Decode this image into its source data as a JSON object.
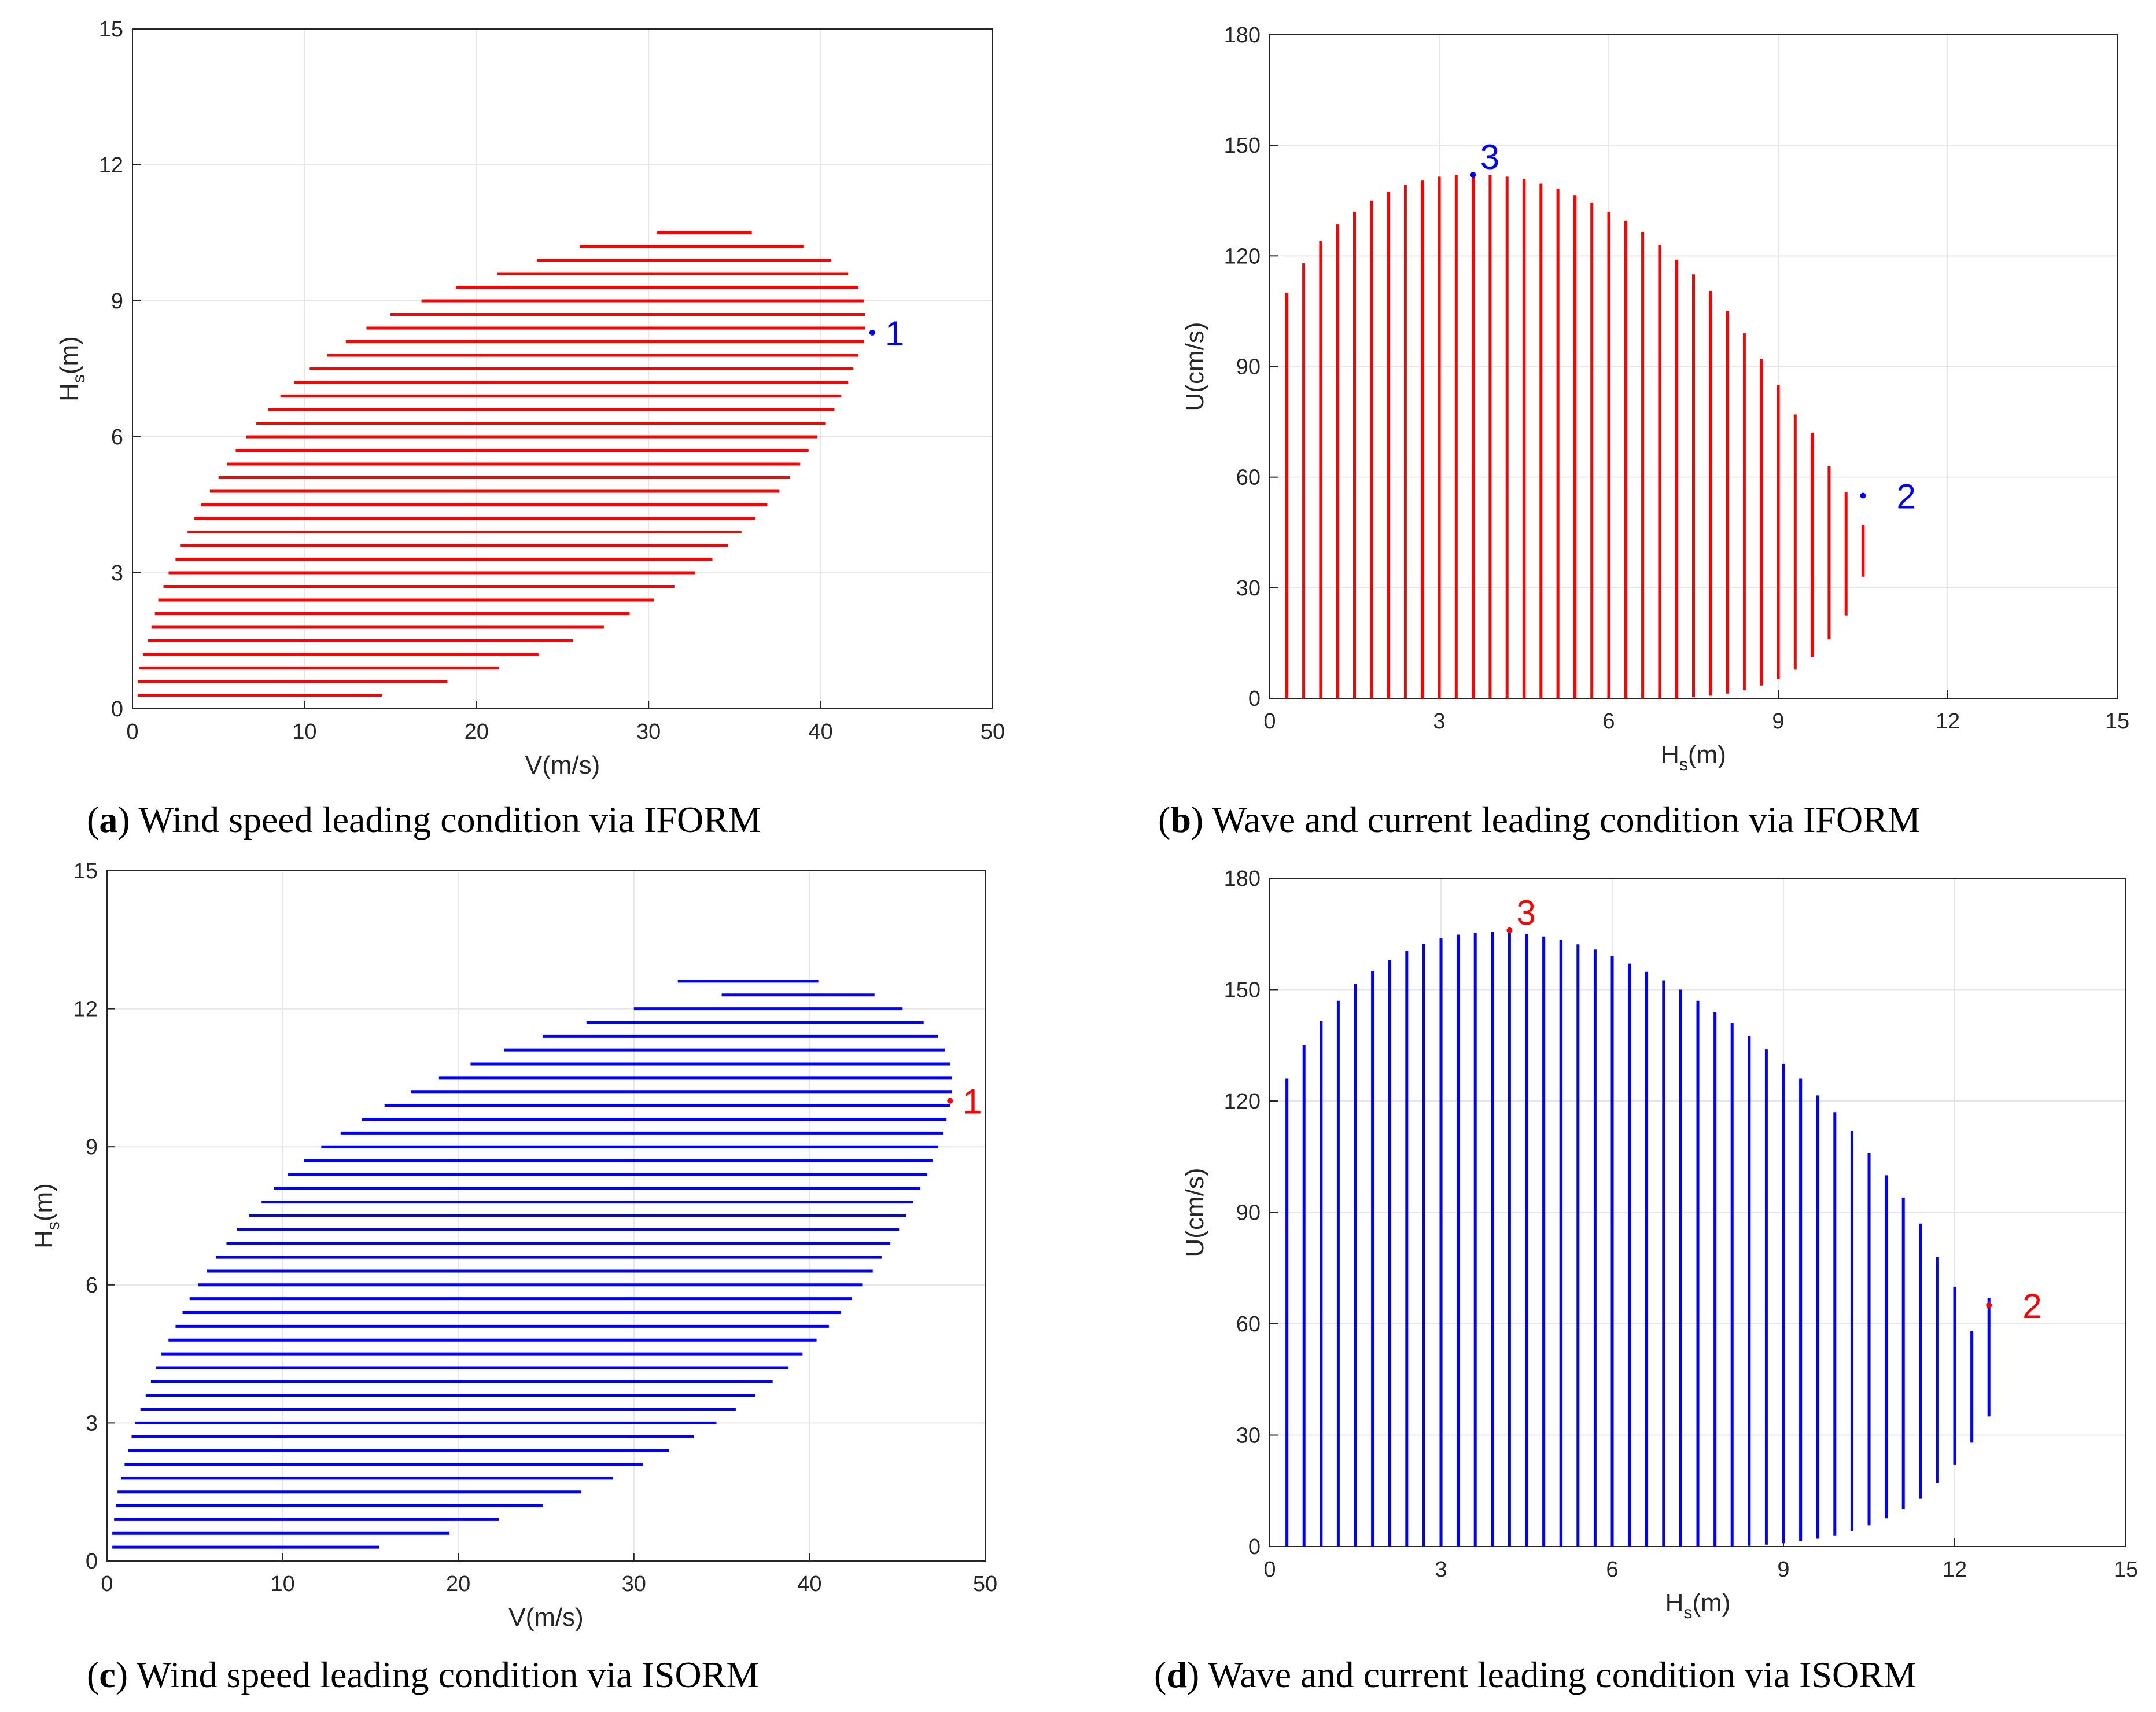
{
  "chart_data": [
    {
      "id": "a",
      "type": "contour-lines",
      "orientation": "horizontal",
      "color": "#ff0000",
      "marker_color": "#0000ff",
      "xlabel": "V(m/s)",
      "ylabel_main": "H",
      "ylabel_sub": "s",
      "ylabel_unit": "(m)",
      "xlim": [
        0,
        50
      ],
      "ylim": [
        0,
        15
      ],
      "xticks": [
        "0",
        "10",
        "20",
        "30",
        "40",
        "50"
      ],
      "yticks": [
        "0",
        "3",
        "6",
        "9",
        "12",
        "15"
      ],
      "lines": {
        "y": [
          0.3,
          0.6,
          0.9,
          1.2,
          1.5,
          1.8,
          2.1,
          2.4,
          2.7,
          3.0,
          3.3,
          3.6,
          3.9,
          4.2,
          4.5,
          4.8,
          5.1,
          5.4,
          5.7,
          6.0,
          6.3,
          6.6,
          6.9,
          7.2,
          7.5,
          7.8,
          8.1,
          8.4,
          8.7,
          9.0,
          9.3,
          9.6,
          9.9,
          10.2,
          10.5
        ],
        "start": [
          0.3,
          0.3,
          0.4,
          0.6,
          0.9,
          1.1,
          1.3,
          1.5,
          1.8,
          2.1,
          2.5,
          2.8,
          3.2,
          3.6,
          4.0,
          4.5,
          5.0,
          5.5,
          6.0,
          6.6,
          7.2,
          7.9,
          8.6,
          9.4,
          10.3,
          11.3,
          12.4,
          13.6,
          15.0,
          16.8,
          18.8,
          21.2,
          23.5,
          26.0,
          30.5
        ],
        "end": [
          14.5,
          18.3,
          21.3,
          23.6,
          25.6,
          27.4,
          28.9,
          30.3,
          31.5,
          32.7,
          33.7,
          34.6,
          35.4,
          36.2,
          36.9,
          37.6,
          38.2,
          38.8,
          39.3,
          39.8,
          40.3,
          40.8,
          41.2,
          41.6,
          41.9,
          42.2,
          42.5,
          42.6,
          42.6,
          42.5,
          42.2,
          41.6,
          40.6,
          39.0,
          36.0
        ]
      },
      "marker": {
        "x": 43,
        "y": 8.3,
        "label": "1"
      },
      "caption_letter": "a",
      "caption_text": ") Wind speed leading condition via IFORM"
    },
    {
      "id": "b",
      "type": "contour-lines",
      "orientation": "vertical",
      "color": "#ff0000",
      "marker_color": "#0000ff",
      "xlabel_main": "H",
      "xlabel_sub": "s",
      "xlabel_unit": "(m)",
      "ylabel": "U(cm/s)",
      "xlim": [
        0,
        15
      ],
      "ylim": [
        0,
        180
      ],
      "xticks": [
        "0",
        "3",
        "6",
        "9",
        "12",
        "15"
      ],
      "yticks": [
        "0",
        "30",
        "60",
        "90",
        "120",
        "150",
        "180"
      ],
      "lines": {
        "x": [
          0.3,
          0.6,
          0.9,
          1.2,
          1.5,
          1.8,
          2.1,
          2.4,
          2.7,
          3.0,
          3.3,
          3.6,
          3.9,
          4.2,
          4.5,
          4.8,
          5.1,
          5.4,
          5.7,
          6.0,
          6.3,
          6.6,
          6.9,
          7.2,
          7.5,
          7.8,
          8.1,
          8.4,
          8.7,
          9.0,
          9.3,
          9.6,
          9.9,
          10.2,
          10.5
        ],
        "low": [
          0,
          0,
          0,
          0,
          0,
          0,
          0,
          0,
          0,
          0,
          0,
          0,
          0,
          0,
          0,
          0,
          0,
          0,
          0,
          0,
          0,
          0,
          0,
          0,
          0.3,
          0.7,
          1.3,
          2.2,
          3.5,
          5.3,
          7.8,
          11.3,
          16.0,
          22.5,
          33.0
        ],
        "high": [
          110,
          118,
          124,
          128.5,
          132,
          135,
          137.5,
          139.3,
          140.6,
          141.5,
          142,
          142.2,
          142,
          141.5,
          140.8,
          139.6,
          138.2,
          136.5,
          134.5,
          132,
          129.5,
          126.5,
          123,
          119,
          115,
          110.5,
          105,
          99,
          92,
          85,
          77,
          72,
          63,
          56,
          47
        ]
      },
      "marker": {
        "x": 3.6,
        "y": 142,
        "label": "3"
      },
      "marker2": {
        "x": 10.5,
        "y": 55,
        "label": "2"
      },
      "caption_letter": "b",
      "caption_text": ") Wave and current leading condition via IFORM"
    },
    {
      "id": "c",
      "type": "contour-lines",
      "orientation": "horizontal",
      "color": "#0000ff",
      "marker_color": "#ff0000",
      "xlabel": "V(m/s)",
      "ylabel_main": "H",
      "ylabel_sub": "s",
      "ylabel_unit": "(m)",
      "xlim": [
        0,
        50
      ],
      "ylim": [
        0,
        15
      ],
      "xticks": [
        "0",
        "10",
        "20",
        "30",
        "40",
        "50"
      ],
      "yticks": [
        "0",
        "3",
        "6",
        "9",
        "12",
        "15"
      ],
      "lines": {
        "y": [
          0.3,
          0.6,
          0.9,
          1.2,
          1.5,
          1.8,
          2.1,
          2.4,
          2.7,
          3.0,
          3.3,
          3.6,
          3.9,
          4.2,
          4.5,
          4.8,
          5.1,
          5.4,
          5.7,
          6.0,
          6.3,
          6.6,
          6.9,
          7.2,
          7.5,
          7.8,
          8.1,
          8.4,
          8.7,
          9.0,
          9.3,
          9.6,
          9.9,
          10.2,
          10.5,
          10.8,
          11.1,
          11.4,
          11.7,
          12.0,
          12.3,
          12.6
        ],
        "start": [
          0.3,
          0.3,
          0.4,
          0.5,
          0.6,
          0.8,
          1.0,
          1.2,
          1.4,
          1.6,
          1.9,
          2.2,
          2.5,
          2.8,
          3.1,
          3.5,
          3.9,
          4.3,
          4.7,
          5.2,
          5.7,
          6.2,
          6.8,
          7.4,
          8.1,
          8.8,
          9.5,
          10.3,
          11.2,
          12.2,
          13.3,
          14.5,
          15.8,
          17.3,
          18.9,
          20.7,
          22.6,
          24.8,
          27.3,
          30.0,
          35.0,
          32.5
        ],
        "end": [
          15.5,
          19.5,
          22.3,
          24.8,
          27.0,
          28.8,
          30.5,
          32.0,
          33.4,
          34.7,
          35.8,
          36.9,
          37.9,
          38.8,
          39.6,
          40.4,
          41.1,
          41.8,
          42.4,
          43.0,
          43.6,
          44.1,
          44.6,
          45.1,
          45.5,
          45.9,
          46.3,
          46.7,
          47.0,
          47.3,
          47.6,
          47.8,
          48.0,
          48.1,
          48.1,
          48.0,
          47.7,
          47.3,
          46.5,
          45.3,
          43.7,
          40.5
        ]
      },
      "marker": {
        "x": 48,
        "y": 10.0,
        "label": "1"
      },
      "caption_letter": "c",
      "caption_text": ") Wind speed leading condition via ISORM"
    },
    {
      "id": "d",
      "type": "contour-lines",
      "orientation": "vertical",
      "color": "#0000ff",
      "marker_color": "#ff0000",
      "xlabel_main": "H",
      "xlabel_sub": "s",
      "xlabel_unit": "(m)",
      "ylabel": "U(cm/s)",
      "xlim": [
        0,
        15
      ],
      "ylim": [
        0,
        180
      ],
      "xticks": [
        "0",
        "3",
        "6",
        "9",
        "12",
        "15"
      ],
      "yticks": [
        "0",
        "30",
        "60",
        "90",
        "120",
        "150",
        "180"
      ],
      "lines": {
        "x": [
          0.3,
          0.6,
          0.9,
          1.2,
          1.5,
          1.8,
          2.1,
          2.4,
          2.7,
          3.0,
          3.3,
          3.6,
          3.9,
          4.2,
          4.5,
          4.8,
          5.1,
          5.4,
          5.7,
          6.0,
          6.3,
          6.6,
          6.9,
          7.2,
          7.5,
          7.8,
          8.1,
          8.4,
          8.7,
          9.0,
          9.3,
          9.6,
          9.9,
          10.2,
          10.5,
          10.8,
          11.1,
          11.4,
          11.7,
          12.0,
          12.3,
          12.6
        ],
        "low": [
          0,
          0,
          0,
          0,
          0,
          0,
          0,
          0,
          0,
          0,
          0,
          0,
          0,
          0,
          0,
          0,
          0,
          0,
          0,
          0,
          0,
          0,
          0,
          0,
          0,
          0,
          0,
          0.2,
          0.5,
          0.9,
          1.4,
          2.1,
          3.0,
          4.2,
          5.7,
          7.6,
          10.0,
          13.0,
          17.0,
          22.0,
          28.0,
          35.0
        ],
        "high": [
          126,
          135,
          141.5,
          147,
          151.5,
          155,
          158,
          160.5,
          162.3,
          163.8,
          164.8,
          165.3,
          165.5,
          165.4,
          165,
          164.3,
          163.4,
          162.2,
          160.8,
          159,
          157,
          154.8,
          152.5,
          150,
          147,
          144,
          141,
          137.5,
          134,
          130,
          126,
          121.5,
          117,
          112,
          106,
          100,
          94,
          87,
          78,
          70,
          58,
          67
        ]
      },
      "marker": {
        "x": 4.2,
        "y": 166,
        "label": "3"
      },
      "marker2": {
        "x": 12.6,
        "y": 65,
        "label": "2"
      },
      "caption_letter": "d",
      "caption_text": ") Wave and current leading condition via ISORM"
    }
  ]
}
